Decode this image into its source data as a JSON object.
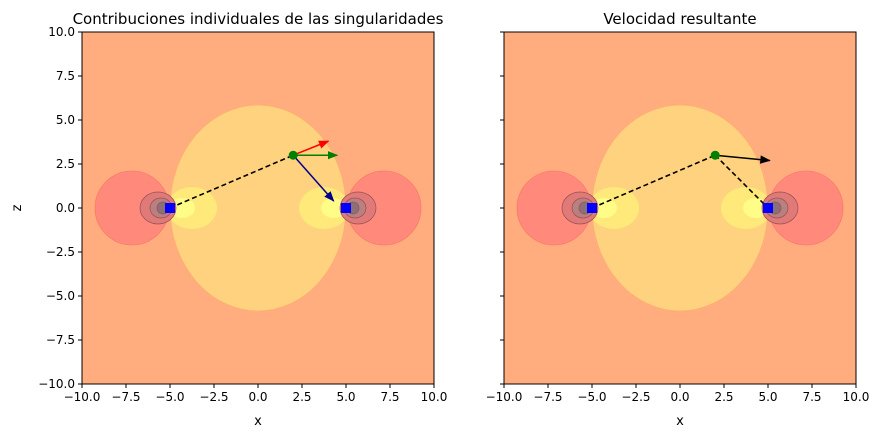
{
  "chart_data": [
    {
      "type": "contour",
      "title": "Contribuciones individuales de las singularidades",
      "xlabel": "x",
      "ylabel": "z",
      "xlim": [
        -10,
        10
      ],
      "ylim": [
        -10,
        10
      ],
      "xticks": [
        -10,
        -7.5,
        -5,
        -2.5,
        0,
        2.5,
        5,
        7.5,
        10
      ],
      "yticks": [
        -10,
        -7.5,
        -5,
        -2.5,
        0,
        2.5,
        5,
        7.5,
        10
      ],
      "xtick_labels": [
        "−10.0",
        "−7.5",
        "−5.0",
        "−2.5",
        "0.0",
        "2.5",
        "5.0",
        "7.5",
        "10.0"
      ],
      "ytick_labels": [
        "−10.0",
        "−7.5",
        "−5.0",
        "−2.5",
        "0.0",
        "2.5",
        "5.0",
        "7.5",
        "10.0"
      ],
      "singularities": [
        {
          "x": -5,
          "z": 0
        },
        {
          "x": 5,
          "z": 0
        }
      ],
      "evaluation_point": {
        "x": 2,
        "z": 3
      },
      "vectors": [
        {
          "from": [
            2,
            3
          ],
          "to": [
            4,
            3.8
          ],
          "color": "#ff0000"
        },
        {
          "from": [
            2,
            3
          ],
          "to": [
            4.5,
            3
          ],
          "color": "#008000"
        },
        {
          "from": [
            2,
            3
          ],
          "to": [
            4.3,
            0.4
          ],
          "color": "#00008b"
        }
      ],
      "dashed_lines": [
        {
          "from": [
            -5,
            0
          ],
          "to": [
            2,
            3
          ]
        }
      ]
    },
    {
      "type": "contour",
      "title": "Velocidad resultante",
      "xlabel": "x",
      "ylabel": "",
      "xlim": [
        -10,
        10
      ],
      "ylim": [
        -10,
        10
      ],
      "xticks": [
        -10,
        -7.5,
        -5,
        -2.5,
        0,
        2.5,
        5,
        7.5,
        10
      ],
      "xtick_labels": [
        "−10.0",
        "−7.5",
        "−5.0",
        "−2.5",
        "0.0",
        "2.5",
        "5.0",
        "7.5",
        "10.0"
      ],
      "singularities": [
        {
          "x": -5,
          "z": 0
        },
        {
          "x": 5,
          "z": 0
        }
      ],
      "evaluation_point": {
        "x": 2,
        "z": 3
      },
      "vectors": [
        {
          "from": [
            2,
            3
          ],
          "to": [
            5.1,
            2.7
          ],
          "color": "#000000"
        }
      ],
      "dashed_lines": [
        {
          "from": [
            -5,
            0
          ],
          "to": [
            2,
            3
          ]
        },
        {
          "from": [
            2,
            3
          ],
          "to": [
            5,
            0
          ]
        }
      ]
    }
  ],
  "colors": {
    "background_field": "#ffad7e",
    "oval_region": "#ffd27f",
    "outer_lobes": "#ff8a7c",
    "inner_lobes": "#ffe97a",
    "core_lobes": "#fffc88",
    "dark_rings": "#b06060",
    "singularity_marker": "#0000ff",
    "point_marker": "#008000"
  }
}
